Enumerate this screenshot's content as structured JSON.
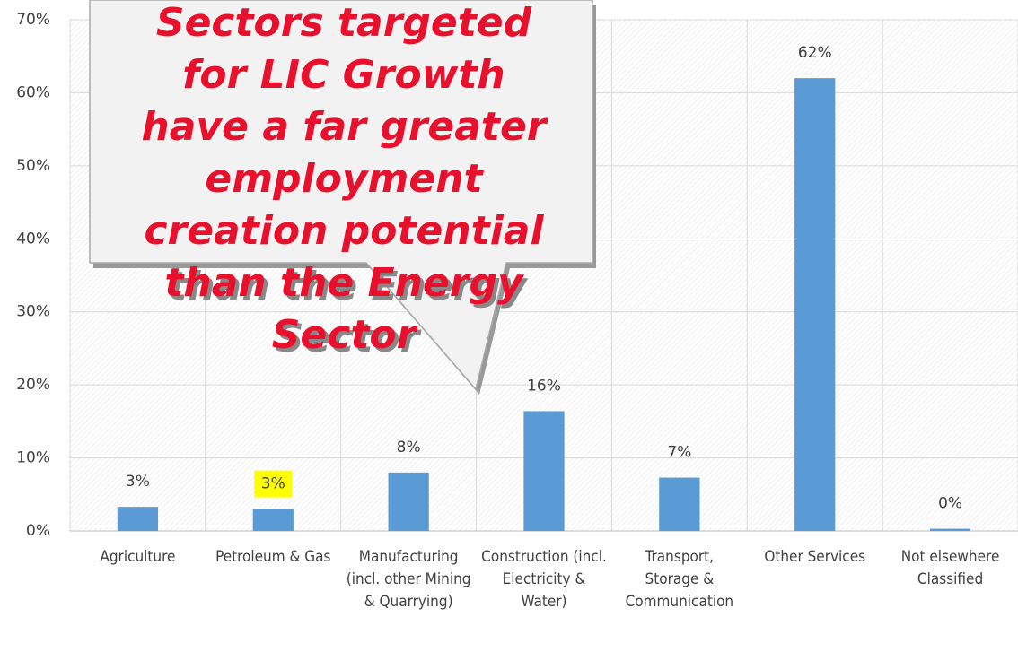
{
  "chart_data": {
    "type": "bar",
    "categories": [
      "Agriculture",
      "Petroleum & Gas",
      "Manufacturing (incl. other Mining & Quarrying)",
      "Construction (incl. Electricity & Water)",
      "Transport, Storage & Communication",
      "Other Services",
      "Not elsewhere Classified"
    ],
    "values": [
      3.3,
      3.0,
      8.0,
      16.4,
      7.3,
      62.0,
      0.3
    ],
    "value_labels": [
      "3%",
      "3%",
      "8%",
      "16%",
      "7%",
      "62%",
      "0%"
    ],
    "color": "#5b9bd5",
    "highlight_index": 1,
    "highlight_color": "#ffff00",
    "ylim": [
      0,
      70
    ],
    "yticks": [
      {
        "value": 0,
        "label": "0%"
      },
      {
        "value": 10,
        "label": "10%"
      },
      {
        "value": 20,
        "label": "20%"
      },
      {
        "value": 30,
        "label": "30%"
      },
      {
        "value": 40,
        "label": "40%"
      },
      {
        "value": 50,
        "label": "50%"
      },
      {
        "value": 60,
        "label": "60%"
      },
      {
        "value": 70,
        "label": "70%"
      }
    ],
    "grid": true,
    "annotation": [
      "Sectors targeted",
      "for LIC Growth",
      "have a far greater",
      "employment",
      "creation potential",
      "than the Energy",
      "Sector"
    ],
    "annotation_color": "#e8112d"
  }
}
